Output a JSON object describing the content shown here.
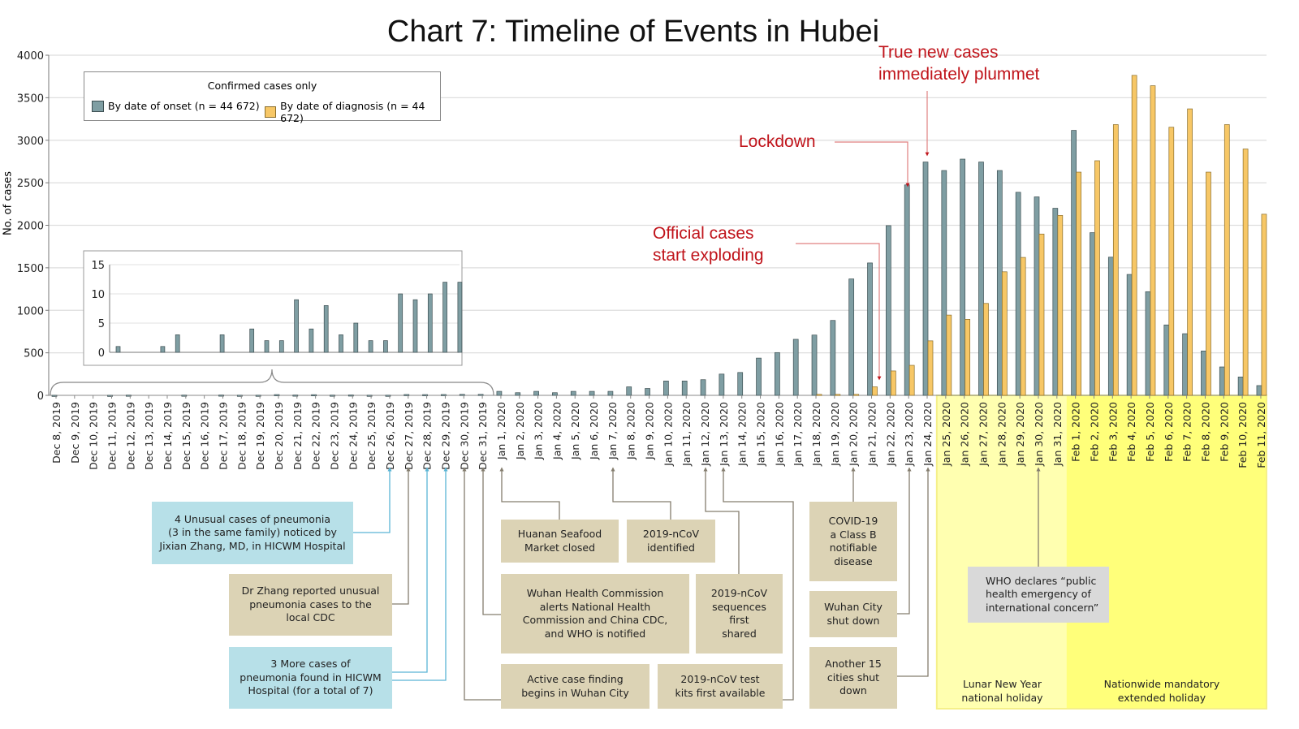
{
  "title": "Chart 7: Timeline of Events in Hubei",
  "legend": {
    "title": "Confirmed cases only",
    "items": [
      "By date of onset (n = 44 672)",
      "By date of diagnosis (n = 44 672)"
    ]
  },
  "colors": {
    "onset": "#7f9ea3",
    "diagnosis": "#f7c766",
    "annotation_red": "#c0141b",
    "lunar_holiday": "#ffffb0",
    "extended_holiday": "#ffff7a",
    "box_tan": "#dcd3b5",
    "box_blue": "#b7e0e8",
    "box_grey": "#d9d9d9"
  },
  "red_annotations": {
    "official": "Official cases\nstart exploding",
    "lockdown": "Lockdown",
    "plummet": "True new cases\nimmediately plummet"
  },
  "events": [
    {
      "text": "4 Unusual cases of pneumonia\n(3 in the same family) noticed by\nJixian Zhang, MD, in HICWM Hospital",
      "date": "Dec 26, 2019"
    },
    {
      "text": "Dr Zhang reported unusual\npneumonia cases to the\nlocal CDC",
      "date": "Dec 27, 2019"
    },
    {
      "text": "3 More cases of\npneumonia found in HICWM\nHospital (for a total of 7)",
      "date": "Dec 28, 2019 / Dec 29, 2019"
    },
    {
      "text": "Huanan Seafood\nMarket closed",
      "date": "Jan 1, 2020"
    },
    {
      "text": "2019-nCoV\nidentified",
      "date": "Jan 7, 2020"
    },
    {
      "text": "Wuhan Health Commission\nalerts National Health\nCommission and China CDC,\nand WHO is notified",
      "date": "Dec 31, 2019"
    },
    {
      "text": "2019-nCoV\nsequences\nfirst\nshared",
      "date": "Jan 12, 2020"
    },
    {
      "text": "Active case finding\nbegins in Wuhan City",
      "date": "Dec 30, 2019"
    },
    {
      "text": "2019-nCoV test\nkits first available",
      "date": "Jan 13, 2020"
    },
    {
      "text": "COVID-19\na Class B\nnotifiable\ndisease",
      "date": "Jan 20, 2020"
    },
    {
      "text": "Wuhan City\nshut down",
      "date": "Jan 23, 2020"
    },
    {
      "text": "Another 15\ncities shut\ndown",
      "date": "Jan 24, 2020"
    },
    {
      "text": "WHO declares “public\nhealth emergency of\ninternational concern”",
      "date": "Jan 30, 2020"
    }
  ],
  "holidays": [
    {
      "label": "Lunar New Year\nnational holiday",
      "from": "Jan 25, 2020",
      "to": "Jan 31, 2020"
    },
    {
      "label": "Nationwide mandatory\nextended holiday",
      "from": "Feb 1, 2020",
      "to": "Feb 11, 2020"
    }
  ],
  "chart_data": {
    "type": "bar",
    "title": "Chart 7: Timeline of Events in Hubei",
    "ylabel": "No. of cases",
    "xlabel": "",
    "ylim": [
      0,
      4000
    ],
    "yticks": [
      0,
      500,
      1000,
      1500,
      2000,
      2500,
      3000,
      3500,
      4000
    ],
    "grid": true,
    "legend_position": "top-left",
    "categories": [
      "Dec 8, 2019",
      "Dec 9, 2019",
      "Dec 10, 2019",
      "Dec 11, 2019",
      "Dec 12, 2019",
      "Dec 13, 2019",
      "Dec 14, 2019",
      "Dec 15, 2019",
      "Dec 16, 2019",
      "Dec 17, 2019",
      "Dec 18, 2019",
      "Dec 19, 2019",
      "Dec 20, 2019",
      "Dec 21, 2019",
      "Dec 22, 2019",
      "Dec 23, 2019",
      "Dec 24, 2019",
      "Dec 25, 2019",
      "Dec 26, 2019",
      "Dec 27, 2019",
      "Dec 28, 2019",
      "Dec 29, 2019",
      "Dec 30, 2019",
      "Dec 31, 2019",
      "Jan 1, 2020",
      "Jan 2, 2020",
      "Jan 3, 2020",
      "Jan 4, 2020",
      "Jan 5, 2020",
      "Jan 6, 2020",
      "Jan 7, 2020",
      "Jan 8, 2020",
      "Jan 9, 2020",
      "Jan 10, 2020",
      "Jan 11, 2020",
      "Jan 12, 2020",
      "Jan 13, 2020",
      "Jan 14, 2020",
      "Jan 15, 2020",
      "Jan 16, 2020",
      "Jan 17, 2020",
      "Jan 18, 2020",
      "Jan 19, 2020",
      "Jan 20, 2020",
      "Jan 21, 2020",
      "Jan 22, 2020",
      "Jan 23, 2020",
      "Jan 24, 2020",
      "Jan 25, 2020",
      "Jan 26, 2020",
      "Jan 27, 2020",
      "Jan 28, 2020",
      "Jan 29, 2020",
      "Jan 30, 2020",
      "Jan 31, 2020",
      "Feb 1, 2020",
      "Feb 2, 2020",
      "Feb 3, 2020",
      "Feb 4, 2020",
      "Feb 5, 2020",
      "Feb 6, 2020",
      "Feb 7, 2020",
      "Feb 8, 2020",
      "Feb 9, 2020",
      "Feb 10, 2020",
      "Feb 11, 2020"
    ],
    "series": [
      {
        "name": "By date of onset (n = 44 672)",
        "values": [
          1,
          0,
          0,
          1,
          3,
          0,
          0,
          3,
          0,
          4,
          2,
          2,
          9,
          4,
          8,
          3,
          5,
          2,
          2,
          10,
          9,
          10,
          12,
          12,
          47,
          31,
          47,
          31,
          47,
          47,
          47,
          100,
          81,
          169,
          169,
          184,
          250,
          269,
          438,
          503,
          659,
          709,
          881,
          1369,
          1557,
          1996,
          2475,
          2744,
          2644,
          2778,
          2744,
          2644,
          2388,
          2334,
          2200,
          3116,
          1913,
          1625,
          1422,
          1219,
          828,
          725,
          522,
          334,
          216,
          115
        ]
      },
      {
        "name": "By date of diagnosis (n = 44 672)",
        "values": [
          0,
          0,
          0,
          0,
          0,
          0,
          0,
          0,
          0,
          0,
          0,
          0,
          0,
          0,
          0,
          0,
          0,
          0,
          0,
          0,
          0,
          0,
          0,
          0,
          0,
          0,
          0,
          0,
          0,
          0,
          0,
          0,
          0,
          0,
          0,
          0,
          0,
          0,
          0,
          0,
          0,
          12,
          12,
          12,
          100,
          287,
          353,
          641,
          944,
          894,
          1081,
          1453,
          1622,
          1897,
          2116,
          2625,
          2759,
          3184,
          3763,
          3641,
          3153,
          3369,
          2625,
          3184,
          2897,
          2130
        ]
      }
    ],
    "inset": {
      "categories_range": [
        "Dec 8, 2019",
        "Dec 31, 2019"
      ],
      "ylim": [
        0,
        15
      ],
      "yticks": [
        0,
        5,
        10,
        15
      ],
      "series": "By date of onset (n = 44 672)"
    }
  }
}
